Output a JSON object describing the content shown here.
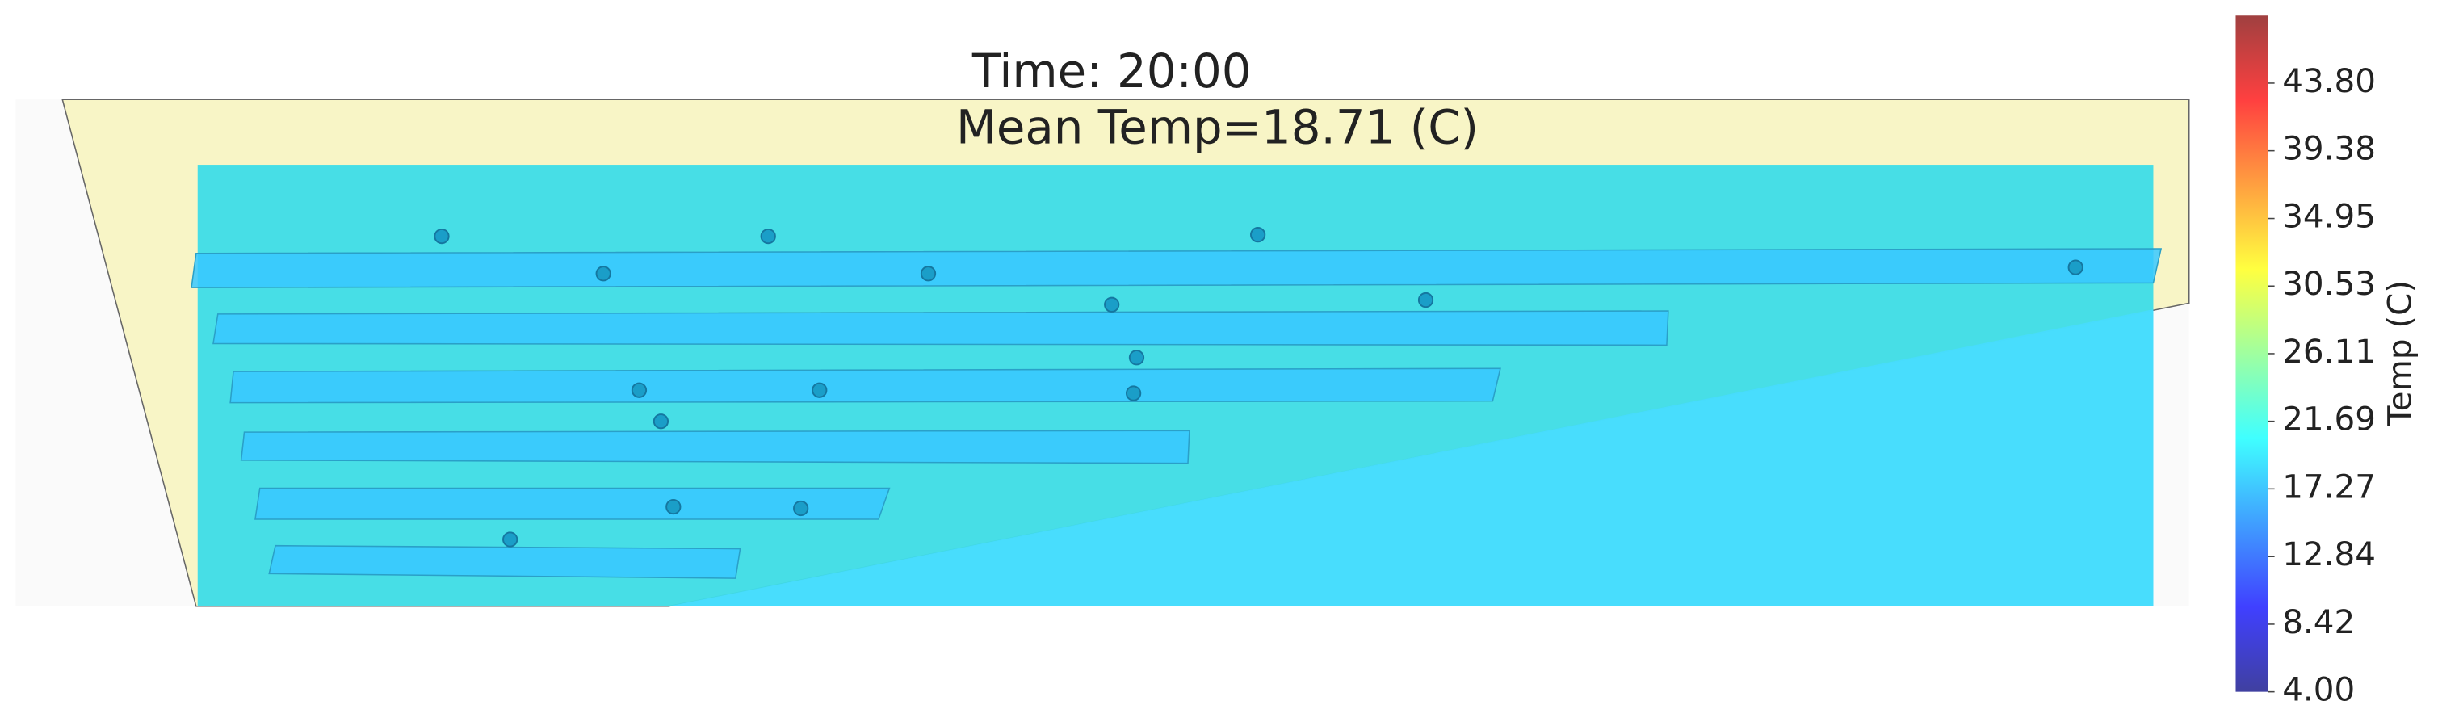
{
  "chart_data": {
    "type": "heatmap",
    "title": "Time: 20:00",
    "subtitle": "Mean Temp=18.71 (C)",
    "colorbar": {
      "label": "Temp (C)",
      "lim": [
        4,
        48.22
      ],
      "ticks": [
        {
          "value": 4,
          "label": "4.00"
        },
        8.42,
        12.84,
        17.27,
        21.69,
        26.11,
        30.53,
        34.95,
        39.38,
        {
          "value": 43.8,
          "label": "43.80"
        }
      ]
    }
  }
}
